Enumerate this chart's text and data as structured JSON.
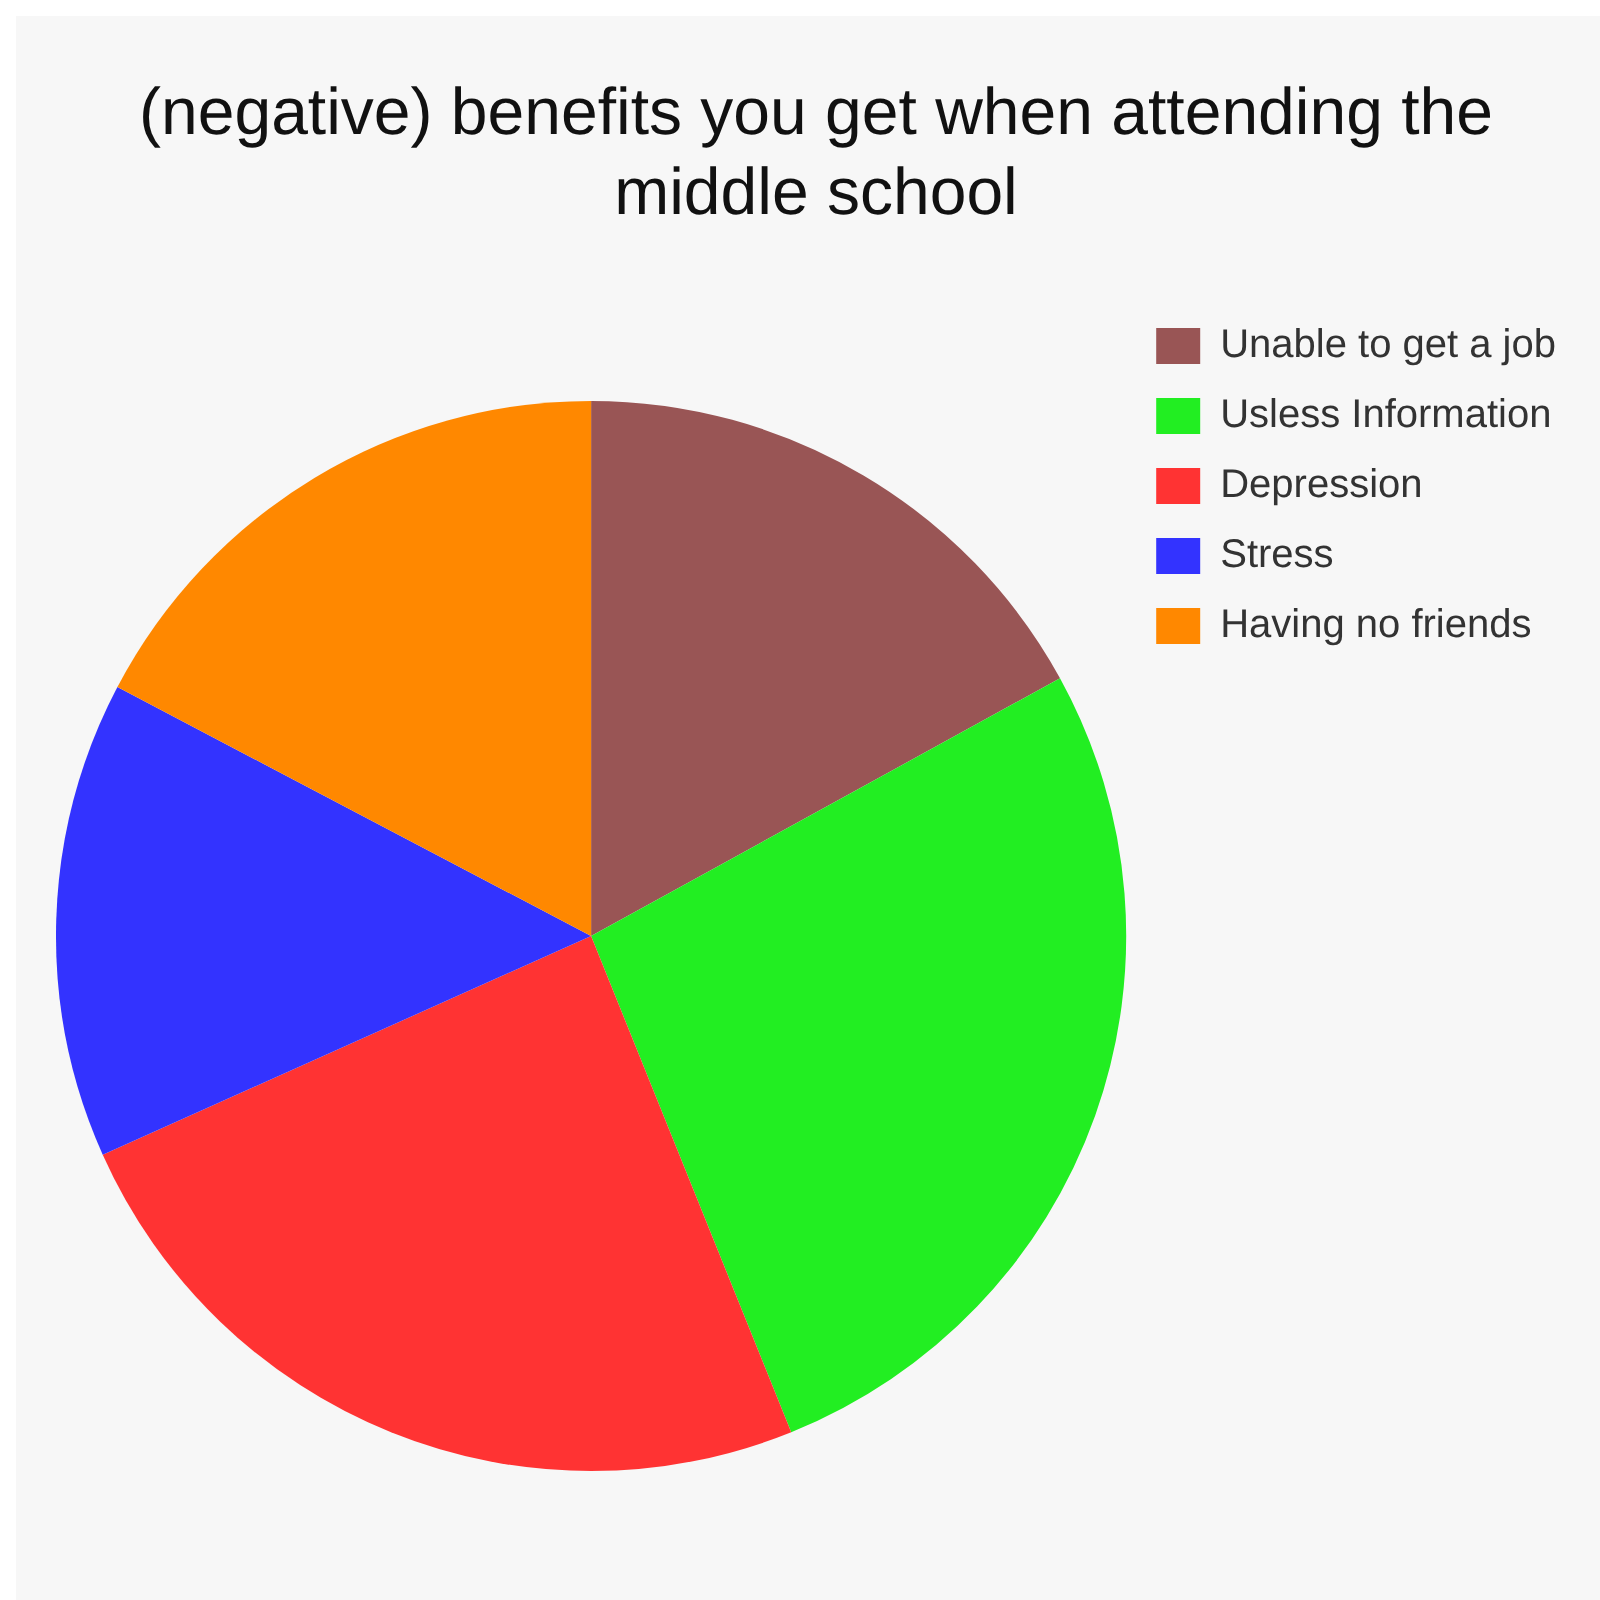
{
  "chart_data": {
    "type": "pie",
    "title": "(negative) benefits you get when attending the middle school",
    "categories": [
      "Unable to get a job",
      "Usless Information",
      "Depression",
      "Stress",
      "Having no friends"
    ],
    "values": [
      17,
      26.9,
      24.4,
      14.4,
      17.3
    ],
    "colors": [
      "#995555",
      "#22ee22",
      "#ff3333",
      "#3333ff",
      "#ff8800"
    ],
    "legend": "right"
  }
}
